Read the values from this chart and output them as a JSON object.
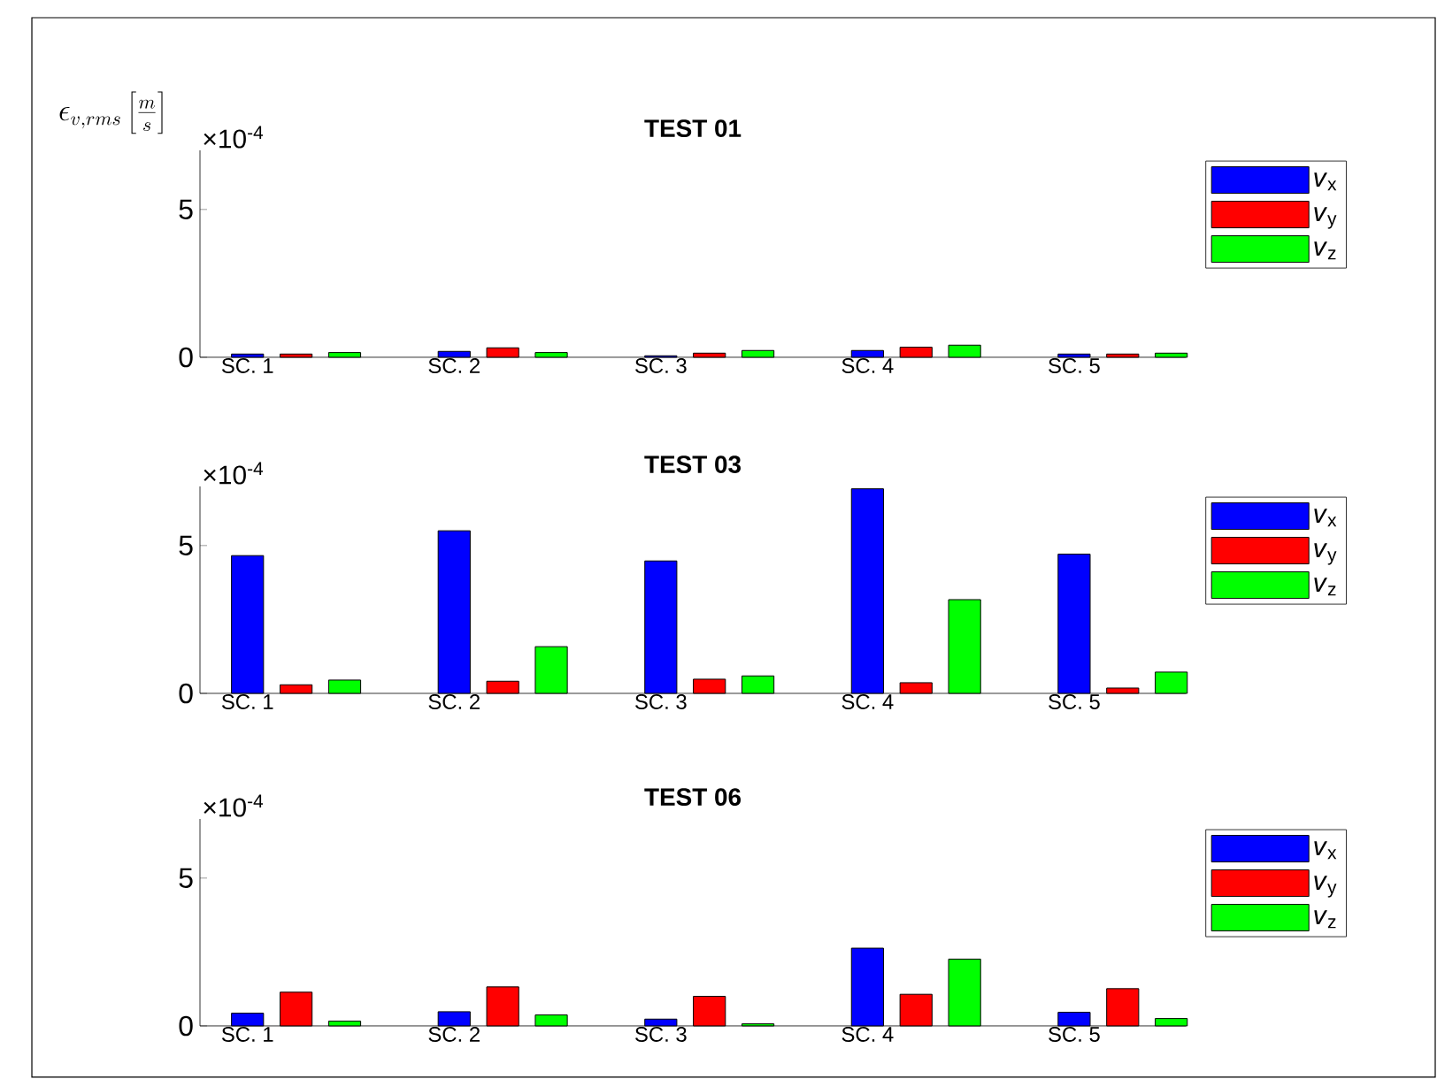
{
  "chart_data": [
    {
      "type": "bar",
      "title": "TEST 01",
      "ylabel": "\\epsilon_{v,rms}\\left[\\frac{m}{s}\\right]",
      "annotations": [
        "×10$^{-4}$"
      ],
      "categories": [
        "SC. 1",
        "SC. 2",
        "SC. 3",
        "SC. 4",
        "SC. 5"
      ],
      "series": [
        {
          "name": "*v*$_{x}$",
          "color": "#0000ff",
          "values": [
            0.11,
            0.2,
            0.05,
            0.23,
            0.11
          ]
        },
        {
          "name": "*v*$_{y}$",
          "color": "#ff0000",
          "values": [
            0.11,
            0.32,
            0.14,
            0.34,
            0.11
          ]
        },
        {
          "name": "*v*$_{z}$",
          "color": "#00ff00",
          "values": [
            0.16,
            0.16,
            0.23,
            0.41,
            0.14
          ]
        }
      ],
      "ylim": [
        0,
        7
      ],
      "yticks": [
        0,
        5
      ],
      "legend": "right"
    },
    {
      "type": "bar",
      "title": "TEST 03",
      "annotations": [
        "×10$^{-4}$"
      ],
      "categories": [
        "SC. 1",
        "SC. 2",
        "SC. 3",
        "SC. 4",
        "SC. 5"
      ],
      "series": [
        {
          "name": "*v*$_{x}$",
          "color": "#0000ff",
          "values": [
            4.66,
            5.5,
            4.48,
            6.92,
            4.71
          ]
        },
        {
          "name": "*v*$_{y}$",
          "color": "#ff0000",
          "values": [
            0.29,
            0.41,
            0.48,
            0.36,
            0.18
          ]
        },
        {
          "name": "*v*$_{z}$",
          "color": "#00ff00",
          "values": [
            0.45,
            1.58,
            0.59,
            3.17,
            0.72
          ]
        }
      ],
      "ylim": [
        0,
        7
      ],
      "yticks": [
        0,
        5
      ],
      "legend": "right"
    },
    {
      "type": "bar",
      "title": "TEST 06",
      "annotations": [
        "×10$^{-4}$"
      ],
      "categories": [
        "SC. 1",
        "SC. 2",
        "SC. 3",
        "SC. 4",
        "SC. 5"
      ],
      "series": [
        {
          "name": "*v*$_{x}$",
          "color": "#0000ff",
          "values": [
            0.43,
            0.48,
            0.23,
            2.63,
            0.46
          ]
        },
        {
          "name": "*v*$_{y}$",
          "color": "#ff0000",
          "values": [
            1.14,
            1.32,
            1.0,
            1.07,
            1.26
          ]
        },
        {
          "name": "*v*$_{z}$",
          "color": "#00ff00",
          "values": [
            0.16,
            0.37,
            0.07,
            2.26,
            0.25
          ]
        }
      ],
      "ylim": [
        0,
        7
      ],
      "yticks": [
        0,
        5
      ],
      "legend": "right"
    }
  ]
}
